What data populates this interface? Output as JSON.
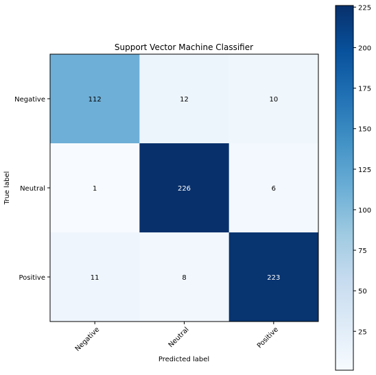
{
  "chart_data": {
    "type": "heatmap",
    "title": "Support Vector Machine Classifier",
    "xlabel": "Predicted label",
    "ylabel": "True label",
    "x_categories": [
      "Negative",
      "Neutral",
      "Positive"
    ],
    "y_categories": [
      "Negative",
      "Neutral",
      "Positive"
    ],
    "matrix": [
      [
        112,
        12,
        10
      ],
      [
        1,
        226,
        6
      ],
      [
        11,
        8,
        223
      ]
    ],
    "cells": [
      {
        "label": "112"
      },
      {
        "label": "12"
      },
      {
        "label": "10"
      },
      {
        "label": "1"
      },
      {
        "label": "226"
      },
      {
        "label": "6"
      },
      {
        "label": "11"
      },
      {
        "label": "8"
      },
      {
        "label": "223"
      }
    ],
    "colormap": "Blues",
    "value_range": [
      1,
      226
    ],
    "colorbar": {
      "ticks": [
        25,
        50,
        75,
        100,
        125,
        150,
        175,
        200,
        225
      ],
      "tick_labels": [
        "25",
        "50",
        "75",
        "100",
        "125",
        "150",
        "175",
        "200",
        "225"
      ]
    },
    "colors": {
      "low": "#f7fbff",
      "high": "#08306b"
    }
  }
}
